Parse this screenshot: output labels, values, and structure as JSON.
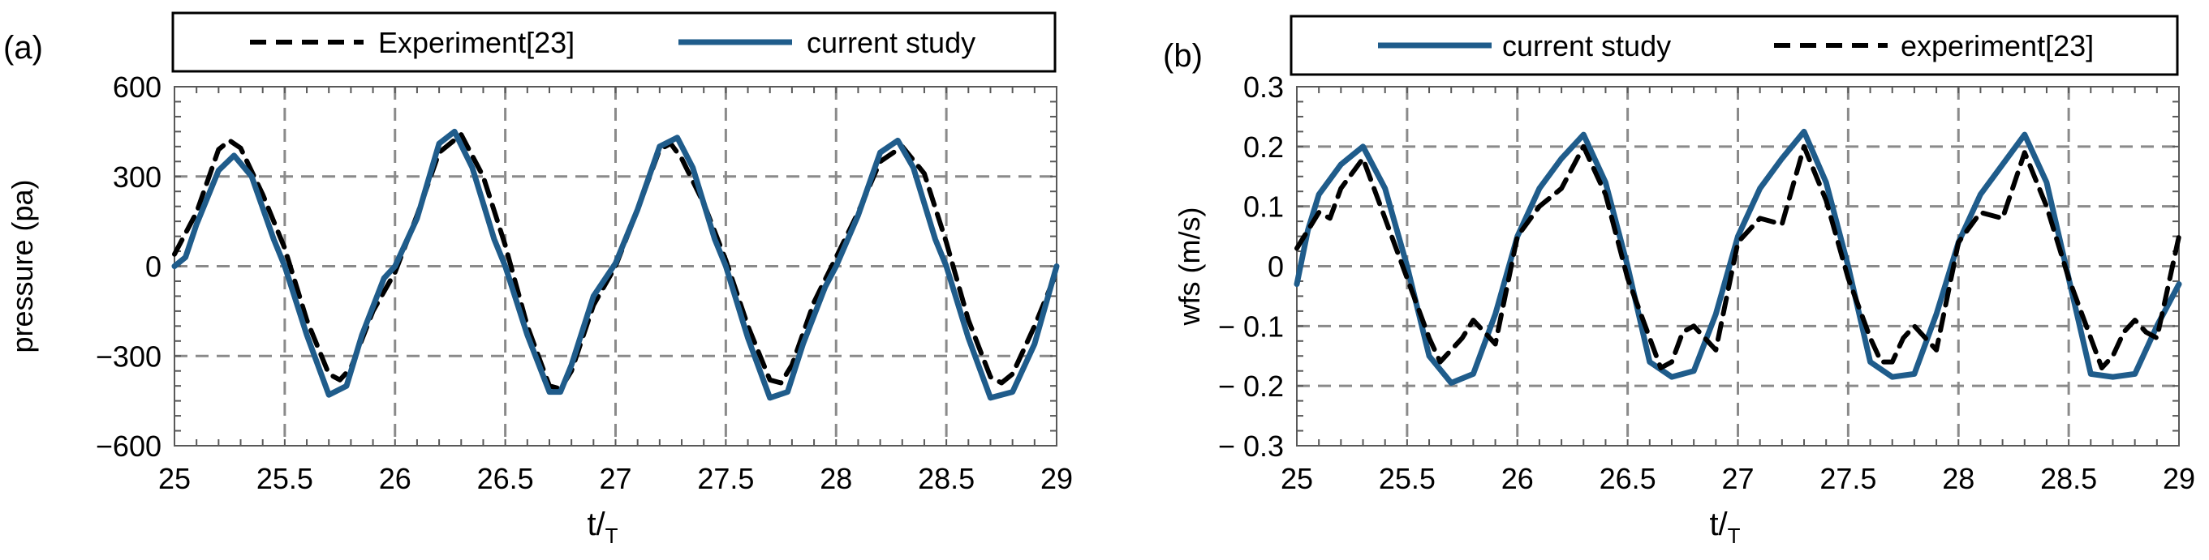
{
  "charts": [
    {
      "panel_label": "(a)",
      "chart_data": {
        "type": "line",
        "title": "",
        "xlabel": "t/",
        "xlabel_sub": "T",
        "ylabel": "pressure (pa)",
        "xlim": [
          25,
          29
        ],
        "ylim": [
          -600,
          600
        ],
        "xticks": [
          25,
          25.5,
          26,
          26.5,
          27,
          27.5,
          28,
          28.5,
          29
        ],
        "xtick_labels": [
          "25",
          "25.5",
          "26",
          "26.5",
          "27",
          "27.5",
          "28",
          "28.5",
          "29"
        ],
        "yticks": [
          600,
          300,
          0,
          -300,
          -600
        ],
        "ytick_labels": [
          "600",
          "300",
          "0",
          "−300",
          "−600"
        ],
        "grid": true,
        "legend_position": "top",
        "series": [
          {
            "name": "Experiment[23]",
            "style": "dashed",
            "color": "#000000",
            "x": [
              25.0,
              25.1,
              25.2,
              25.25,
              25.3,
              25.4,
              25.5,
              25.6,
              25.7,
              25.75,
              25.8,
              25.9,
              26.0,
              26.1,
              26.2,
              26.3,
              26.4,
              26.5,
              26.6,
              26.7,
              26.75,
              26.8,
              26.9,
              27.0,
              27.1,
              27.2,
              27.25,
              27.3,
              27.4,
              27.5,
              27.6,
              27.7,
              27.75,
              27.8,
              27.9,
              28.0,
              28.1,
              28.2,
              28.3,
              28.4,
              28.5,
              28.6,
              28.7,
              28.75,
              28.8,
              28.9,
              29.0
            ],
            "y": [
              40,
              180,
              390,
              420,
              395,
              240,
              60,
              -180,
              -360,
              -380,
              -340,
              -150,
              -20,
              170,
              380,
              440,
              300,
              70,
              -200,
              -400,
              -410,
              -350,
              -130,
              0,
              190,
              390,
              410,
              360,
              210,
              20,
              -200,
              -380,
              -390,
              -330,
              -120,
              30,
              180,
              350,
              400,
              310,
              80,
              -180,
              -370,
              -390,
              -360,
              -200,
              -20
            ]
          },
          {
            "name": "current study",
            "style": "solid",
            "color": "#1f5c8b",
            "x": [
              25.0,
              25.05,
              25.1,
              25.2,
              25.27,
              25.35,
              25.45,
              25.5,
              25.6,
              25.7,
              25.78,
              25.85,
              25.95,
              26.0,
              26.1,
              26.2,
              26.27,
              26.35,
              26.45,
              26.5,
              26.6,
              26.7,
              26.75,
              26.8,
              26.9,
              27.0,
              27.1,
              27.2,
              27.28,
              27.35,
              27.45,
              27.5,
              27.6,
              27.7,
              27.78,
              27.85,
              27.95,
              28.0,
              28.1,
              28.2,
              28.28,
              28.35,
              28.45,
              28.5,
              28.6,
              28.7,
              28.8,
              28.9,
              29.0
            ],
            "y": [
              0,
              30,
              140,
              320,
              370,
              300,
              90,
              0,
              -230,
              -430,
              -400,
              -230,
              -40,
              0,
              160,
              410,
              450,
              330,
              90,
              0,
              -230,
              -420,
              -420,
              -330,
              -100,
              10,
              190,
              400,
              430,
              330,
              90,
              0,
              -240,
              -440,
              -420,
              -260,
              -70,
              0,
              170,
              380,
              420,
              330,
              90,
              0,
              -240,
              -440,
              -420,
              -260,
              0
            ]
          }
        ]
      }
    },
    {
      "panel_label": "(b)",
      "chart_data": {
        "type": "line",
        "title": "",
        "xlabel": "t/",
        "xlabel_sub": "T",
        "ylabel": "wfs (m/s)",
        "xlim": [
          25,
          29
        ],
        "ylim": [
          -0.3,
          0.3
        ],
        "xticks": [
          25,
          25.5,
          26,
          26.5,
          27,
          27.5,
          28,
          28.5,
          29
        ],
        "xtick_labels": [
          "25",
          "25.5",
          "26",
          "26.5",
          "27",
          "27.5",
          "28",
          "28.5",
          "29"
        ],
        "yticks": [
          0.3,
          0.2,
          0.1,
          0,
          -0.1,
          -0.2,
          -0.3
        ],
        "ytick_labels": [
          "0.3",
          "0.2",
          "0.1",
          "0",
          "− 0.1",
          "− 0.2",
          "− 0.3"
        ],
        "grid": true,
        "legend_position": "top",
        "series": [
          {
            "name": "current study",
            "style": "solid",
            "color": "#1f5c8b",
            "x": [
              25.0,
              25.05,
              25.1,
              25.2,
              25.3,
              25.4,
              25.5,
              25.6,
              25.7,
              25.8,
              25.9,
              26.0,
              26.1,
              26.2,
              26.3,
              26.4,
              26.5,
              26.6,
              26.7,
              26.8,
              26.9,
              27.0,
              27.1,
              27.2,
              27.3,
              27.4,
              27.5,
              27.6,
              27.7,
              27.8,
              27.9,
              28.0,
              28.1,
              28.2,
              28.3,
              28.4,
              28.5,
              28.6,
              28.7,
              28.8,
              28.9,
              29.0
            ],
            "y": [
              -0.03,
              0.06,
              0.12,
              0.17,
              0.2,
              0.13,
              0.0,
              -0.15,
              -0.195,
              -0.18,
              -0.08,
              0.05,
              0.13,
              0.18,
              0.22,
              0.14,
              0.0,
              -0.16,
              -0.185,
              -0.175,
              -0.08,
              0.05,
              0.13,
              0.18,
              0.225,
              0.14,
              0.0,
              -0.16,
              -0.185,
              -0.18,
              -0.08,
              0.04,
              0.12,
              0.17,
              0.22,
              0.14,
              -0.02,
              -0.18,
              -0.185,
              -0.18,
              -0.1,
              -0.03
            ]
          },
          {
            "name": "experiment[23]",
            "style": "dashed",
            "color": "#000000",
            "x": [
              25.0,
              25.1,
              25.15,
              25.2,
              25.3,
              25.4,
              25.5,
              25.6,
              25.65,
              25.7,
              25.75,
              25.8,
              25.85,
              25.9,
              26.0,
              26.1,
              26.2,
              26.3,
              26.4,
              26.5,
              26.6,
              26.65,
              26.7,
              26.75,
              26.8,
              26.85,
              26.9,
              27.0,
              27.1,
              27.2,
              27.3,
              27.4,
              27.5,
              27.6,
              27.65,
              27.7,
              27.75,
              27.8,
              27.85,
              27.9,
              28.0,
              28.1,
              28.2,
              28.3,
              28.4,
              28.5,
              28.6,
              28.65,
              28.7,
              28.75,
              28.8,
              28.85,
              28.9,
              29.0
            ],
            "y": [
              0.03,
              0.09,
              0.08,
              0.13,
              0.18,
              0.08,
              -0.02,
              -0.12,
              -0.16,
              -0.14,
              -0.12,
              -0.09,
              -0.11,
              -0.13,
              0.05,
              0.1,
              0.13,
              0.2,
              0.12,
              -0.02,
              -0.12,
              -0.17,
              -0.16,
              -0.11,
              -0.1,
              -0.12,
              -0.14,
              0.04,
              0.08,
              0.07,
              0.2,
              0.11,
              -0.02,
              -0.12,
              -0.16,
              -0.16,
              -0.12,
              -0.1,
              -0.12,
              -0.14,
              0.04,
              0.09,
              0.08,
              0.19,
              0.1,
              -0.02,
              -0.12,
              -0.17,
              -0.15,
              -0.11,
              -0.09,
              -0.11,
              -0.12,
              0.05
            ]
          }
        ]
      }
    }
  ]
}
